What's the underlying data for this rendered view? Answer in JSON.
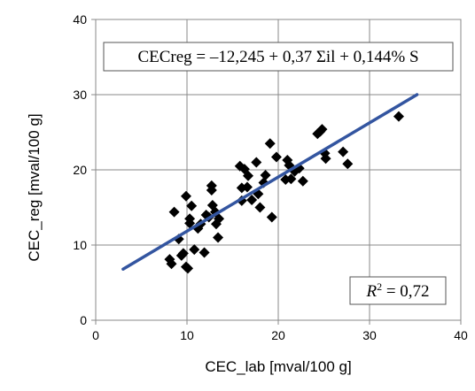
{
  "chart_data": {
    "type": "scatter",
    "xlabel": "CEC_lab [mval/100 g]",
    "ylabel": "CEC_reg [mval/100 g]",
    "xlim": [
      0,
      40
    ],
    "ylim": [
      0,
      40
    ],
    "xticks": [
      "0",
      "10",
      "20",
      "30",
      "40"
    ],
    "yticks": [
      "0",
      "10",
      "20",
      "30",
      "40"
    ],
    "grid": true,
    "marker_color": "#000000",
    "line_color": "#3355a0",
    "equation_text": "CECreg = –12,245 + 0,37 Σil + 0,144% S",
    "r2": {
      "label": "R",
      "superscript": "2",
      "value_text": " = 0,72"
    },
    "regression_line": {
      "x": [
        3.0,
        35.2
      ],
      "y": [
        6.8,
        30.0
      ]
    },
    "points": [
      {
        "x": 8.1,
        "y": 8.1
      },
      {
        "x": 8.3,
        "y": 7.5
      },
      {
        "x": 8.6,
        "y": 14.4
      },
      {
        "x": 9.1,
        "y": 10.8
      },
      {
        "x": 9.4,
        "y": 8.6
      },
      {
        "x": 9.6,
        "y": 8.9
      },
      {
        "x": 9.9,
        "y": 16.5
      },
      {
        "x": 9.9,
        "y": 7.1
      },
      {
        "x": 10.1,
        "y": 6.9
      },
      {
        "x": 10.3,
        "y": 12.9
      },
      {
        "x": 10.3,
        "y": 13.5
      },
      {
        "x": 10.5,
        "y": 15.2
      },
      {
        "x": 10.8,
        "y": 9.4
      },
      {
        "x": 11.2,
        "y": 12.2
      },
      {
        "x": 11.5,
        "y": 12.8
      },
      {
        "x": 11.9,
        "y": 9.0
      },
      {
        "x": 12.1,
        "y": 14.0
      },
      {
        "x": 12.4,
        "y": 13.7
      },
      {
        "x": 12.7,
        "y": 17.9
      },
      {
        "x": 12.7,
        "y": 17.3
      },
      {
        "x": 12.8,
        "y": 15.3
      },
      {
        "x": 13.1,
        "y": 14.4
      },
      {
        "x": 13.2,
        "y": 12.8
      },
      {
        "x": 13.4,
        "y": 11.0
      },
      {
        "x": 13.5,
        "y": 13.5
      },
      {
        "x": 15.8,
        "y": 20.5
      },
      {
        "x": 16.0,
        "y": 17.6
      },
      {
        "x": 16.0,
        "y": 15.9
      },
      {
        "x": 16.3,
        "y": 20.1
      },
      {
        "x": 16.6,
        "y": 17.7
      },
      {
        "x": 16.7,
        "y": 19.2
      },
      {
        "x": 17.1,
        "y": 16.0
      },
      {
        "x": 17.6,
        "y": 21.0
      },
      {
        "x": 17.8,
        "y": 16.8
      },
      {
        "x": 18.0,
        "y": 15.0
      },
      {
        "x": 18.4,
        "y": 18.3
      },
      {
        "x": 18.6,
        "y": 19.3
      },
      {
        "x": 19.1,
        "y": 23.5
      },
      {
        "x": 19.3,
        "y": 13.7
      },
      {
        "x": 19.8,
        "y": 21.7
      },
      {
        "x": 20.8,
        "y": 18.7
      },
      {
        "x": 21.0,
        "y": 21.3
      },
      {
        "x": 21.2,
        "y": 20.6
      },
      {
        "x": 21.4,
        "y": 18.8
      },
      {
        "x": 21.8,
        "y": 19.8
      },
      {
        "x": 22.3,
        "y": 20.2
      },
      {
        "x": 22.7,
        "y": 18.5
      },
      {
        "x": 24.3,
        "y": 24.8
      },
      {
        "x": 24.6,
        "y": 25.1
      },
      {
        "x": 24.8,
        "y": 25.4
      },
      {
        "x": 25.1,
        "y": 22.2
      },
      {
        "x": 25.2,
        "y": 21.5
      },
      {
        "x": 27.1,
        "y": 22.4
      },
      {
        "x": 27.6,
        "y": 20.8
      },
      {
        "x": 33.2,
        "y": 27.1
      }
    ]
  }
}
